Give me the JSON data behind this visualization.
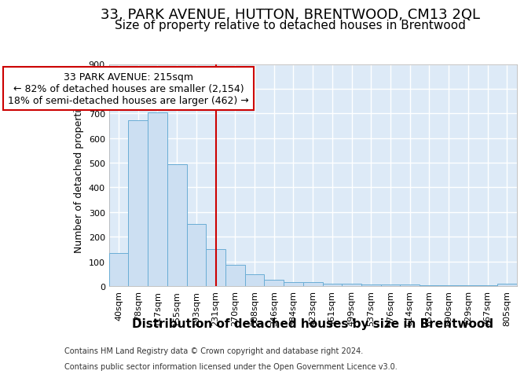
{
  "title": "33, PARK AVENUE, HUTTON, BRENTWOOD, CM13 2QL",
  "subtitle": "Size of property relative to detached houses in Brentwood",
  "xlabel": "Distribution of detached houses by size in Brentwood",
  "ylabel": "Number of detached properties",
  "categories": [
    "40sqm",
    "78sqm",
    "117sqm",
    "155sqm",
    "193sqm",
    "231sqm",
    "270sqm",
    "308sqm",
    "346sqm",
    "384sqm",
    "423sqm",
    "461sqm",
    "499sqm",
    "537sqm",
    "576sqm",
    "614sqm",
    "652sqm",
    "690sqm",
    "729sqm",
    "767sqm",
    "805sqm"
  ],
  "values": [
    135,
    672,
    703,
    493,
    251,
    150,
    85,
    48,
    25,
    17,
    17,
    10,
    10,
    6,
    5,
    5,
    4,
    3,
    3,
    3,
    8
  ],
  "bar_color": "#ccdff2",
  "bar_edge_color": "#6aadd5",
  "vline_position": 5.0,
  "vline_color": "#cc0000",
  "annotation_line1": "33 PARK AVENUE: 215sqm",
  "annotation_line2": "← 82% of detached houses are smaller (2,154)",
  "annotation_line3": "18% of semi-detached houses are larger (462) →",
  "annotation_box_facecolor": "#ffffff",
  "annotation_box_edgecolor": "#cc0000",
  "footer_line1": "Contains HM Land Registry data © Crown copyright and database right 2024.",
  "footer_line2": "Contains public sector information licensed under the Open Government Licence v3.0.",
  "ylim_max": 900,
  "yticks": [
    0,
    100,
    200,
    300,
    400,
    500,
    600,
    700,
    800,
    900
  ],
  "plot_bg": "#ddeaf7",
  "grid_color": "#ffffff",
  "fig_bg": "#ffffff",
  "title_fontsize": 13,
  "subtitle_fontsize": 11,
  "ylabel_fontsize": 9,
  "xlabel_fontsize": 11,
  "tick_fontsize": 8,
  "footer_fontsize": 7,
  "annot_fontsize": 9
}
